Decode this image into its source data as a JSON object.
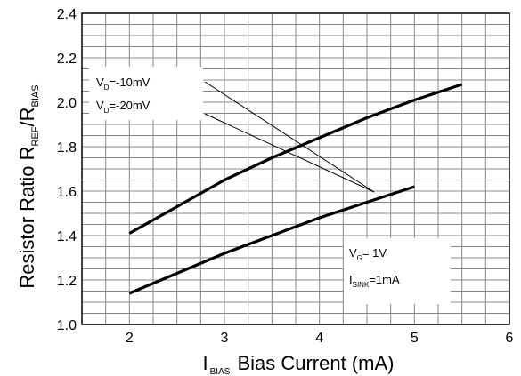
{
  "chart_data": {
    "type": "line",
    "title": "",
    "xlabel": {
      "symbol": "I",
      "subscript": "BIAS",
      "text": "Bias Current (mA)"
    },
    "ylabel": {
      "prefix": "Resistor Ratio R",
      "sub1": "REF",
      "mid": "/R",
      "sub2": "BIAS"
    },
    "xlim": [
      1.5,
      6
    ],
    "ylim": [
      1.0,
      2.4
    ],
    "xticks": [
      "2",
      "3",
      "4",
      "5",
      "6"
    ],
    "yticks": [
      "1.0",
      "1.2",
      "1.4",
      "1.6",
      "1.8",
      "2.0",
      "2.2",
      "2.4"
    ],
    "grid": true,
    "series": [
      {
        "name": "VD=-10mV",
        "x": [
          2.0,
          2.5,
          3.0,
          3.5,
          4.0,
          4.5,
          5.0,
          5.5
        ],
        "y": [
          1.41,
          1.53,
          1.65,
          1.75,
          1.84,
          1.93,
          2.01,
          2.08
        ]
      },
      {
        "name": "VD=-20mV",
        "x": [
          2.0,
          2.5,
          3.0,
          3.5,
          4.0,
          4.5,
          5.0
        ],
        "y": [
          1.14,
          1.23,
          1.32,
          1.4,
          1.48,
          1.55,
          1.62
        ]
      }
    ],
    "annotations": [
      {
        "main": "V",
        "sub": "D",
        "text": "=-10mV",
        "series": 0
      },
      {
        "main": "V",
        "sub": "D",
        "text": "=-20mV",
        "series": 1
      }
    ],
    "conditions": [
      {
        "main": "V",
        "sub": "G",
        "text": "= 1V"
      },
      {
        "main": "I",
        "sub": "SINK",
        "text": "=1mA"
      }
    ]
  }
}
